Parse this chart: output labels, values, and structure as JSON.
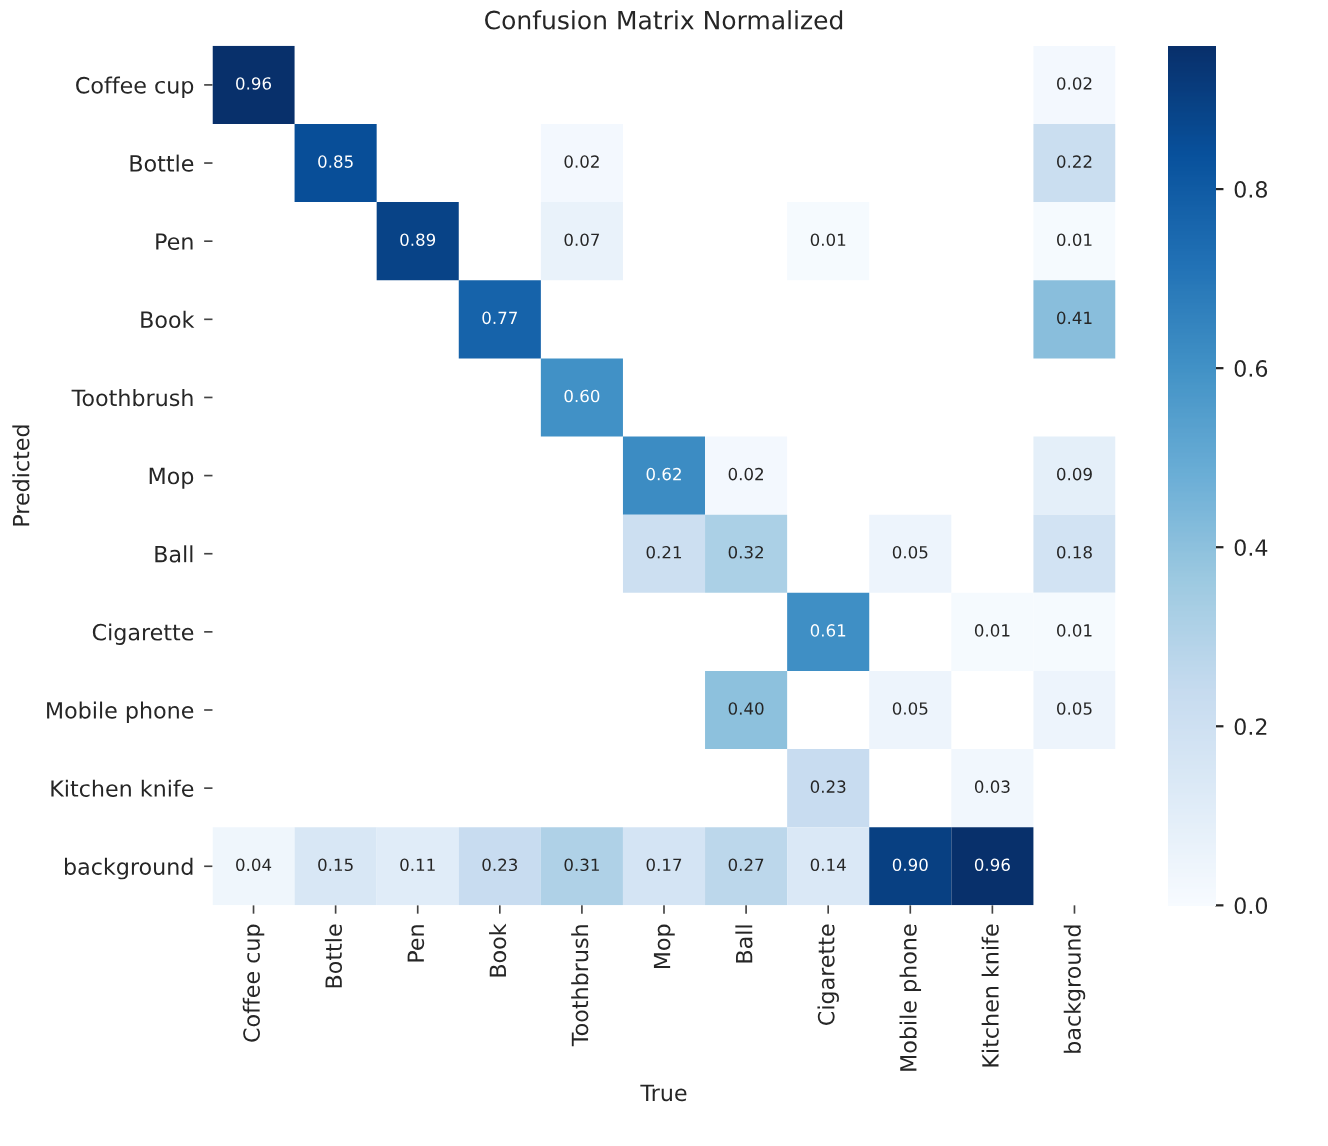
{
  "chart_data": {
    "type": "heatmap",
    "title": "Confusion Matrix Normalized",
    "xlabel": "True",
    "ylabel": "Predicted",
    "categories": [
      "Coffee cup",
      "Bottle",
      "Pen",
      "Book",
      "Toothbrush",
      "Mop",
      "Ball",
      "Cigarette",
      "Mobile phone",
      "Kitchen knife",
      "background"
    ],
    "y_categories": [
      "Coffee cup",
      "Bottle",
      "Pen",
      "Book",
      "Toothbrush",
      "Mop",
      "Ball",
      "Cigarette",
      "Mobile phone",
      "Kitchen knife",
      "background"
    ],
    "cells": [
      [
        0.96,
        null,
        null,
        null,
        null,
        null,
        null,
        null,
        null,
        null,
        0.02
      ],
      [
        null,
        0.85,
        null,
        null,
        0.02,
        null,
        null,
        null,
        null,
        null,
        0.22
      ],
      [
        null,
        null,
        0.89,
        null,
        0.07,
        null,
        null,
        0.01,
        null,
        null,
        0.01
      ],
      [
        null,
        null,
        null,
        0.77,
        null,
        null,
        null,
        null,
        null,
        null,
        0.41
      ],
      [
        null,
        null,
        null,
        null,
        0.6,
        null,
        null,
        null,
        null,
        null,
        null
      ],
      [
        null,
        null,
        null,
        null,
        null,
        0.62,
        0.02,
        null,
        null,
        null,
        0.09
      ],
      [
        null,
        null,
        null,
        null,
        null,
        0.21,
        0.32,
        null,
        0.05,
        null,
        0.18
      ],
      [
        null,
        null,
        null,
        null,
        null,
        null,
        null,
        0.61,
        null,
        0.01,
        0.01
      ],
      [
        null,
        null,
        null,
        null,
        null,
        null,
        0.4,
        null,
        0.05,
        null,
        0.05
      ],
      [
        null,
        null,
        null,
        null,
        null,
        null,
        null,
        0.23,
        null,
        0.03,
        null
      ],
      [
        0.04,
        0.15,
        0.11,
        0.23,
        0.31,
        0.17,
        0.27,
        0.14,
        0.9,
        0.96,
        null
      ]
    ],
    "cell_labels": [
      [
        "0.96",
        null,
        null,
        null,
        null,
        null,
        null,
        null,
        null,
        null,
        "0.02"
      ],
      [
        null,
        "0.85",
        null,
        null,
        "0.02",
        null,
        null,
        null,
        null,
        null,
        "0.22"
      ],
      [
        null,
        null,
        "0.89",
        null,
        "0.07",
        null,
        null,
        "0.01",
        null,
        null,
        "0.01"
      ],
      [
        null,
        null,
        null,
        "0.77",
        null,
        null,
        null,
        null,
        null,
        null,
        "0.41"
      ],
      [
        null,
        null,
        null,
        null,
        "0.60",
        null,
        null,
        null,
        null,
        null,
        null
      ],
      [
        null,
        null,
        null,
        null,
        null,
        "0.62",
        "0.02",
        null,
        null,
        null,
        "0.09"
      ],
      [
        null,
        null,
        null,
        null,
        null,
        "0.21",
        "0.32",
        null,
        "0.05",
        null,
        "0.18"
      ],
      [
        null,
        null,
        null,
        null,
        null,
        null,
        null,
        "0.61",
        null,
        "0.01",
        "0.01"
      ],
      [
        null,
        null,
        null,
        null,
        null,
        null,
        "0.40",
        null,
        "0.05",
        null,
        "0.05"
      ],
      [
        null,
        null,
        null,
        null,
        null,
        null,
        null,
        "0.23",
        null,
        "0.03",
        null
      ],
      [
        "0.04",
        "0.15",
        "0.11",
        "0.23",
        "0.31",
        "0.17",
        "0.27",
        "0.14",
        "0.90",
        "0.96",
        null
      ]
    ],
    "clim": [
      0.0,
      0.96
    ],
    "cticks": [
      {
        "value": 0.0,
        "label": "0.0"
      },
      {
        "value": 0.2,
        "label": "0.2"
      },
      {
        "value": 0.4,
        "label": "0.4"
      },
      {
        "value": 0.6,
        "label": "0.6"
      },
      {
        "value": 0.8,
        "label": "0.8"
      }
    ],
    "data_labels": true
  }
}
